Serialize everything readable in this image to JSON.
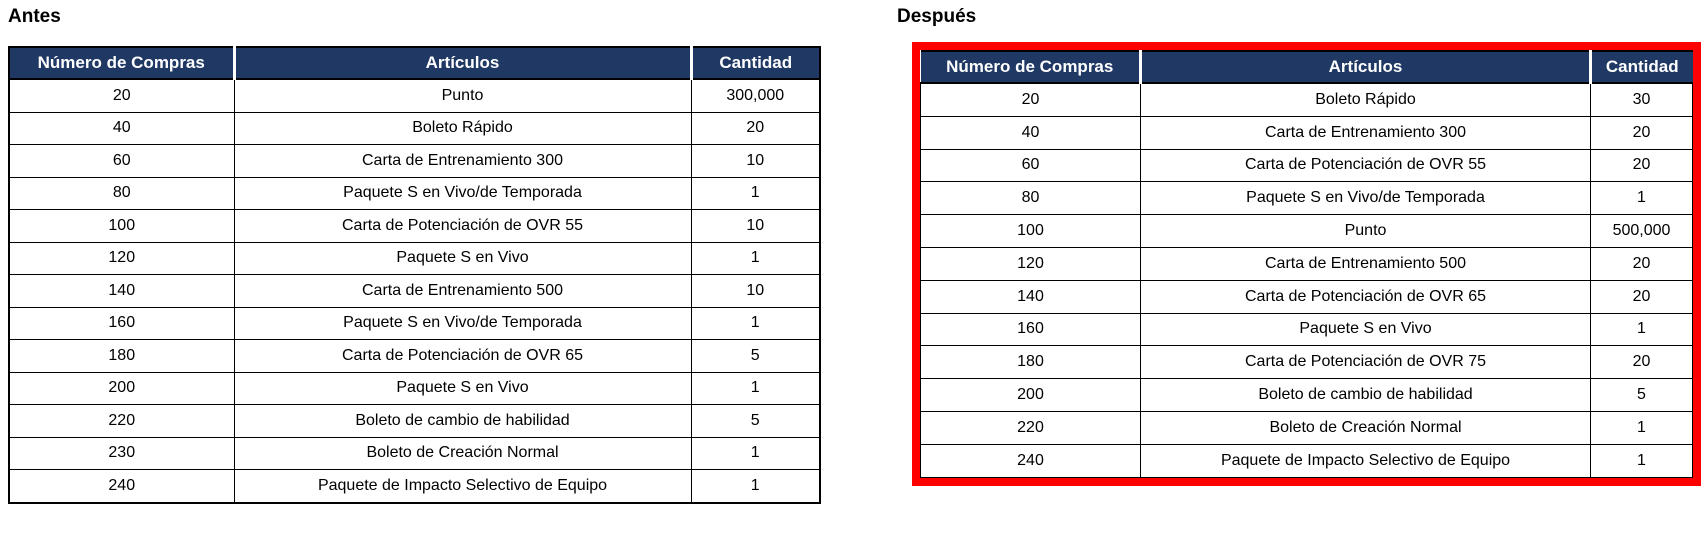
{
  "colors": {
    "header_bg": "#1F3864",
    "header_text": "#FFFFFF",
    "grid": "#000000",
    "highlight_border": "#FF0000"
  },
  "tables": {
    "antes": {
      "title": "Antes",
      "headers": [
        "Número de Compras",
        "Artículos",
        "Cantidad"
      ],
      "rows": [
        [
          "20",
          "Punto",
          "300,000"
        ],
        [
          "40",
          "Boleto Rápido",
          "20"
        ],
        [
          "60",
          "Carta de Entrenamiento 300",
          "10"
        ],
        [
          "80",
          "Paquete S en Vivo/de Temporada",
          "1"
        ],
        [
          "100",
          "Carta de Potenciación de OVR 55",
          "10"
        ],
        [
          "120",
          "Paquete S en Vivo",
          "1"
        ],
        [
          "140",
          "Carta de Entrenamiento 500",
          "10"
        ],
        [
          "160",
          "Paquete S en Vivo/de Temporada",
          "1"
        ],
        [
          "180",
          "Carta de Potenciación de OVR 65",
          "5"
        ],
        [
          "200",
          "Paquete S en Vivo",
          "1"
        ],
        [
          "220",
          "Boleto de cambio de habilidad",
          "5"
        ],
        [
          "230",
          "Boleto de Creación Normal",
          "1"
        ],
        [
          "240",
          "Paquete de Impacto Selectivo de Equipo",
          "1"
        ]
      ]
    },
    "despues": {
      "title": "Después",
      "headers": [
        "Número de Compras",
        "Artículos",
        "Cantidad"
      ],
      "highlighted": true,
      "rows": [
        [
          "20",
          "Boleto Rápido",
          "30"
        ],
        [
          "40",
          "Carta de Entrenamiento 300",
          "20"
        ],
        [
          "60",
          "Carta de Potenciación de OVR 55",
          "20"
        ],
        [
          "80",
          "Paquete S en Vivo/de Temporada",
          "1"
        ],
        [
          "100",
          "Punto",
          "500,000"
        ],
        [
          "120",
          "Carta de Entrenamiento 500",
          "20"
        ],
        [
          "140",
          "Carta de Potenciación de OVR 65",
          "20"
        ],
        [
          "160",
          "Paquete S en Vivo",
          "1"
        ],
        [
          "180",
          "Carta de Potenciación de OVR 75",
          "20"
        ],
        [
          "200",
          "Boleto de cambio de habilidad",
          "5"
        ],
        [
          "220",
          "Boleto de Creación Normal",
          "1"
        ],
        [
          "240",
          "Paquete de Impacto Selectivo de Equipo",
          "1"
        ]
      ]
    }
  }
}
